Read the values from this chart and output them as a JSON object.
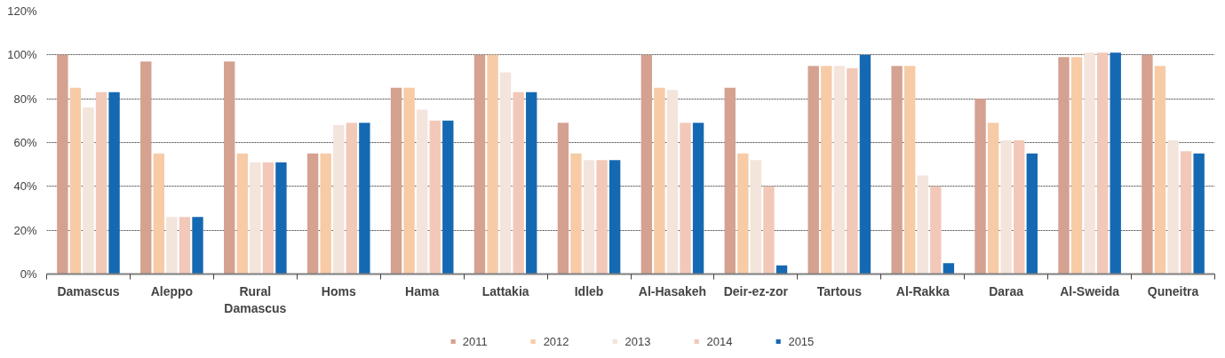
{
  "chart_data": {
    "type": "bar",
    "categories": [
      "Damascus",
      "Aleppo",
      "Rural Damascus",
      "Homs",
      "Hama",
      "Lattakia",
      "Idleb",
      "Al-Hasakeh",
      "Deir-ez-zor",
      "Tartous",
      "Al-Rakka",
      "Daraa",
      "Al-Sweida",
      "Quneitra"
    ],
    "series": [
      {
        "name": "2011",
        "color": "#d5a190",
        "values": [
          100,
          97,
          97,
          55,
          85,
          100,
          69,
          100,
          85,
          95,
          95,
          80,
          99,
          100
        ]
      },
      {
        "name": "2012",
        "color": "#f7cba6",
        "values": [
          85,
          55,
          55,
          55,
          85,
          100,
          55,
          85,
          55,
          95,
          95,
          69,
          99,
          95
        ]
      },
      {
        "name": "2013",
        "color": "#f3e4dc",
        "values": [
          76,
          26,
          51,
          68,
          75,
          92,
          52,
          84,
          52,
          95,
          45,
          61,
          101,
          61
        ]
      },
      {
        "name": "2014",
        "color": "#f2c8b8",
        "values": [
          83,
          26,
          51,
          69,
          70,
          83,
          52,
          69,
          40,
          94,
          40,
          61,
          101,
          56
        ]
      },
      {
        "name": "2015",
        "color": "#1569b2",
        "values": [
          83,
          26,
          51,
          69,
          70,
          83,
          52,
          69,
          4,
          100,
          5,
          55,
          101,
          55
        ]
      }
    ],
    "ylim": [
      0,
      120
    ],
    "yticks": [
      {
        "value": 0,
        "label": "0%"
      },
      {
        "value": 20,
        "label": "20%"
      },
      {
        "value": 40,
        "label": "40%"
      },
      {
        "value": 60,
        "label": "60%"
      },
      {
        "value": 80,
        "label": "80%"
      },
      {
        "value": 100,
        "label": "100%"
      },
      {
        "value": 120,
        "label": "120%"
      }
    ],
    "grid": "y",
    "legend": "bottom"
  }
}
